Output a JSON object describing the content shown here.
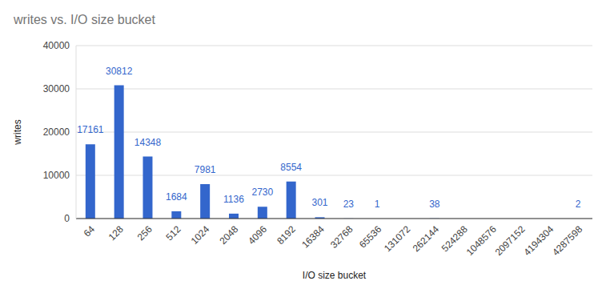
{
  "chart_data": {
    "type": "bar",
    "title": "writes vs. I/O size bucket",
    "x_label": "I/O size bucket",
    "y_label": "writes",
    "categories": [
      "64",
      "128",
      "256",
      "512",
      "1024",
      "2048",
      "4096",
      "8192",
      "16384",
      "32768",
      "65536",
      "131072",
      "262144",
      "524288",
      "1048576",
      "2097152",
      "4194304",
      "4287598"
    ],
    "values": [
      17161,
      30812,
      14348,
      1684,
      7981,
      1136,
      2730,
      8554,
      301,
      23,
      1,
      0,
      38,
      0,
      0,
      0,
      0,
      2
    ],
    "color": "#3366cc",
    "ylim": [
      0,
      40000
    ],
    "yticks": [
      0,
      10000,
      20000,
      30000,
      40000
    ],
    "grid": true,
    "data_labels": true
  }
}
